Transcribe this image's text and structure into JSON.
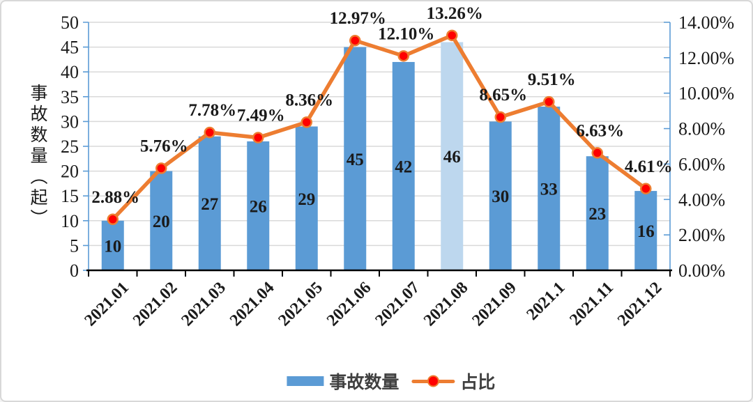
{
  "colors": {
    "bar": "#5B9BD5",
    "bar_highlight": "#BDD7EE",
    "line": "#ED7D31",
    "marker": "#FF0000",
    "grid": "#D9D9D9",
    "axis_blue": "#5B9BD5",
    "axis_black": "#000000",
    "text": "#1A1A1A"
  },
  "chart_data": {
    "type": "combo",
    "title": "",
    "categories": [
      "2021.01",
      "2021.02",
      "2021.03",
      "2021.04",
      "2021.05",
      "2021.06",
      "2021.07",
      "2021.08",
      "2021.09",
      "2021.1",
      "2021.11",
      "2021.12"
    ],
    "series": [
      {
        "name": "事故数量",
        "type": "bar",
        "axis": "left",
        "values": [
          10,
          20,
          27,
          26,
          29,
          45,
          42,
          46,
          30,
          33,
          23,
          16
        ],
        "labels": [
          "10",
          "20",
          "27",
          "26",
          "29",
          "45",
          "42",
          "46",
          "30",
          "33",
          "23",
          "16"
        ],
        "color": "#5B9BD5",
        "highlight_index": 7,
        "highlight_color": "#BDD7EE"
      },
      {
        "name": "占比",
        "type": "line",
        "axis": "right",
        "values": [
          2.88,
          5.76,
          7.78,
          7.49,
          8.36,
          12.97,
          12.1,
          13.26,
          8.65,
          9.51,
          6.63,
          4.61
        ],
        "labels": [
          "2.88%",
          "5.76%",
          "7.78%",
          "7.49%",
          "8.36%",
          "12.97%",
          "12.10%",
          "13.26%",
          "8.65%",
          "9.51%",
          "6.63%",
          "4.61%"
        ],
        "color": "#ED7D31",
        "marker_color": "#FF0000"
      }
    ],
    "left_axis": {
      "label": "事故数量（起）",
      "min": 0,
      "max": 50,
      "step": 5,
      "ticks": [
        "0",
        "5",
        "10",
        "15",
        "20",
        "25",
        "30",
        "35",
        "40",
        "45",
        "50"
      ]
    },
    "right_axis": {
      "min": 0,
      "max": 14,
      "step": 2,
      "ticks": [
        "0.00%",
        "2.00%",
        "4.00%",
        "6.00%",
        "8.00%",
        "10.00%",
        "12.00%",
        "14.00%"
      ]
    },
    "grid": true,
    "legend_position": "bottom"
  }
}
